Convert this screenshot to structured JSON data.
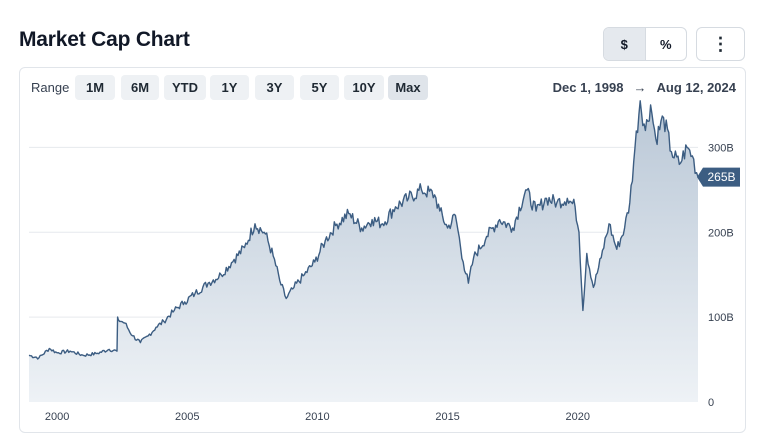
{
  "header": {
    "title": "Market Cap Chart",
    "toggle": [
      {
        "label": "$",
        "active": true
      },
      {
        "label": "%",
        "active": false
      }
    ],
    "more_icon": "more-vertical-icon",
    "more_glyph": "⋮"
  },
  "range_bar": {
    "label": "Range",
    "options": [
      "1M",
      "6M",
      "YTD",
      "1Y",
      "3Y",
      "5Y",
      "10Y",
      "Max"
    ],
    "selected": "Max",
    "start_date": "Dec 1, 1998",
    "arrow": "→",
    "end_date": "Aug 12, 2024"
  },
  "colors": {
    "line": "#3c5d82",
    "fill_top": "#b9c7d6",
    "fill_bottom": "#eef2f6",
    "grid": "#e6e9ed",
    "badge": "#3c5d82"
  },
  "chart_data": {
    "type": "area",
    "title": "",
    "xlabel": "",
    "ylabel": "",
    "ylim": [
      0,
      350
    ],
    "xlim": [
      1998.92,
      2024.62
    ],
    "y_ticks": [
      {
        "value": 0,
        "label": "0"
      },
      {
        "value": 100,
        "label": "100B"
      },
      {
        "value": 200,
        "label": "200B"
      },
      {
        "value": 300,
        "label": "300B"
      }
    ],
    "x_ticks": [
      {
        "value": 2000,
        "label": "2000"
      },
      {
        "value": 2005,
        "label": "2005"
      },
      {
        "value": 2010,
        "label": "2010"
      },
      {
        "value": 2015,
        "label": "2015"
      },
      {
        "value": 2020,
        "label": "2020"
      }
    ],
    "grid": true,
    "last_value_label": "265B",
    "series": [
      {
        "unit": "B",
        "x": [
          1998.92,
          1999.3,
          1999.7,
          2000.0,
          2000.5,
          2001.0,
          2001.5,
          2002.0,
          2002.3,
          2002.35,
          2002.6,
          2002.9,
          2003.2,
          2003.5,
          2003.8,
          2004.1,
          2004.5,
          2004.9,
          2005.3,
          2005.8,
          2006.3,
          2006.8,
          2007.2,
          2007.6,
          2008.0,
          2008.3,
          2008.6,
          2008.8,
          2009.1,
          2009.5,
          2009.9,
          2010.3,
          2010.7,
          2011.2,
          2011.7,
          2012.1,
          2012.5,
          2013.0,
          2013.5,
          2014.0,
          2014.5,
          2014.7,
          2015.0,
          2015.3,
          2015.6,
          2015.8,
          2016.0,
          2016.5,
          2017.0,
          2017.5,
          2018.0,
          2018.4,
          2018.8,
          2019.2,
          2019.6,
          2019.9,
          2020.05,
          2020.2,
          2020.35,
          2020.6,
          2020.9,
          2021.2,
          2021.5,
          2021.8,
          2022.0,
          2022.2,
          2022.4,
          2022.6,
          2022.8,
          2023.0,
          2023.3,
          2023.6,
          2023.9,
          2024.2,
          2024.4,
          2024.62
        ],
        "values": [
          55,
          52,
          63,
          58,
          60,
          55,
          57,
          62,
          60,
          97,
          93,
          78,
          70,
          78,
          88,
          95,
          108,
          118,
          128,
          140,
          150,
          168,
          182,
          210,
          198,
          172,
          138,
          122,
          135,
          150,
          165,
          190,
          208,
          222,
          205,
          215,
          210,
          230,
          240,
          250,
          244,
          225,
          205,
          220,
          165,
          140,
          170,
          195,
          215,
          205,
          250,
          225,
          240,
          235,
          240,
          230,
          200,
          108,
          175,
          135,
          170,
          210,
          180,
          205,
          235,
          300,
          355,
          320,
          350,
          310,
          335,
          295,
          280,
          300,
          290,
          265
        ]
      }
    ]
  }
}
